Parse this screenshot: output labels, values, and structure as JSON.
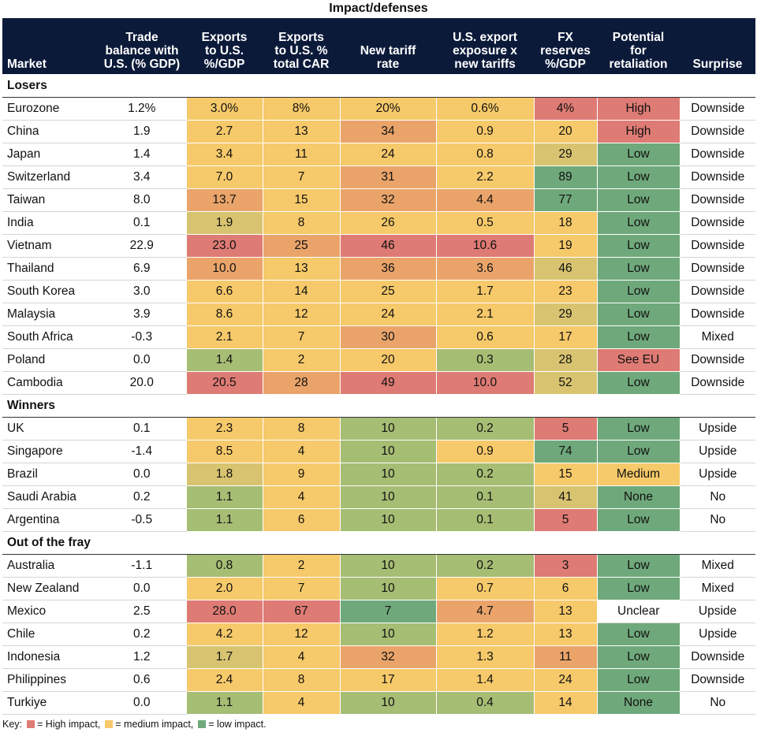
{
  "title": "Impact/defenses",
  "colors": {
    "header_bg": "#0c1a3a",
    "red": "#de7b74",
    "orange": "#eaa46a",
    "yellow": "#f6c96a",
    "olive": "#d8c470",
    "lightgreen": "#a6bd74",
    "green": "#6fa97b",
    "neutral": "#ffffff"
  },
  "chart_data": {
    "type": "table",
    "title": "Impact/defenses",
    "columns": [
      "Market",
      "Trade balance with U.S. (% GDP)",
      "Exports to U.S. %/GDP",
      "Exports to U.S. % total CAR",
      "New tariff rate",
      "U.S. export exposure x new tariffs",
      "FX reserves %/GDP",
      "Potential for retaliation",
      "Surprise"
    ],
    "groups": [
      {
        "name": "Losers",
        "rows": [
          {
            "cells": [
              "Eurozone",
              "1.2%",
              "3.0%",
              "8%",
              "20%",
              "0.6%",
              "4%",
              "High",
              "Downside"
            ],
            "shades": [
              "neutral",
              "neutral",
              "yellow",
              "yellow",
              "yellow",
              "yellow",
              "red",
              "red",
              "neutral"
            ]
          },
          {
            "cells": [
              "China",
              "1.9",
              "2.7",
              "13",
              "34",
              "0.9",
              "20",
              "High",
              "Downside"
            ],
            "shades": [
              "neutral",
              "neutral",
              "yellow",
              "yellow",
              "orange",
              "yellow",
              "yellow",
              "red",
              "neutral"
            ]
          },
          {
            "cells": [
              "Japan",
              "1.4",
              "3.4",
              "11",
              "24",
              "0.8",
              "29",
              "Low",
              "Downside"
            ],
            "shades": [
              "neutral",
              "neutral",
              "yellow",
              "yellow",
              "yellow",
              "yellow",
              "olive",
              "green",
              "neutral"
            ]
          },
          {
            "cells": [
              "Switzerland",
              "3.4",
              "7.0",
              "7",
              "31",
              "2.2",
              "89",
              "Low",
              "Downside"
            ],
            "shades": [
              "neutral",
              "neutral",
              "yellow",
              "yellow",
              "orange",
              "yellow",
              "green",
              "green",
              "neutral"
            ]
          },
          {
            "cells": [
              "Taiwan",
              "8.0",
              "13.7",
              "15",
              "32",
              "4.4",
              "77",
              "Low",
              "Downside"
            ],
            "shades": [
              "neutral",
              "neutral",
              "orange",
              "yellow",
              "orange",
              "orange",
              "green",
              "green",
              "neutral"
            ]
          },
          {
            "cells": [
              "India",
              "0.1",
              "1.9",
              "8",
              "26",
              "0.5",
              "18",
              "Low",
              "Downside"
            ],
            "shades": [
              "neutral",
              "neutral",
              "olive",
              "yellow",
              "yellow",
              "yellow",
              "yellow",
              "green",
              "neutral"
            ]
          },
          {
            "cells": [
              "Vietnam",
              "22.9",
              "23.0",
              "25",
              "46",
              "10.6",
              "19",
              "Low",
              "Downside"
            ],
            "shades": [
              "neutral",
              "neutral",
              "red",
              "orange",
              "red",
              "red",
              "yellow",
              "green",
              "neutral"
            ]
          },
          {
            "cells": [
              "Thailand",
              "6.9",
              "10.0",
              "13",
              "36",
              "3.6",
              "46",
              "Low",
              "Downside"
            ],
            "shades": [
              "neutral",
              "neutral",
              "orange",
              "yellow",
              "orange",
              "orange",
              "olive",
              "green",
              "neutral"
            ]
          },
          {
            "cells": [
              "South Korea",
              "3.0",
              "6.6",
              "14",
              "25",
              "1.7",
              "23",
              "Low",
              "Downside"
            ],
            "shades": [
              "neutral",
              "neutral",
              "yellow",
              "yellow",
              "yellow",
              "yellow",
              "yellow",
              "green",
              "neutral"
            ]
          },
          {
            "cells": [
              "Malaysia",
              "3.9",
              "8.6",
              "12",
              "24",
              "2.1",
              "29",
              "Low",
              "Downside"
            ],
            "shades": [
              "neutral",
              "neutral",
              "yellow",
              "yellow",
              "yellow",
              "yellow",
              "olive",
              "green",
              "neutral"
            ]
          },
          {
            "cells": [
              "South Africa",
              "-0.3",
              "2.1",
              "7",
              "30",
              "0.6",
              "17",
              "Low",
              "Mixed"
            ],
            "shades": [
              "neutral",
              "neutral",
              "yellow",
              "yellow",
              "orange",
              "yellow",
              "yellow",
              "green",
              "neutral"
            ]
          },
          {
            "cells": [
              "Poland",
              "0.0",
              "1.4",
              "2",
              "20",
              "0.3",
              "28",
              "See EU",
              "Downside"
            ],
            "shades": [
              "neutral",
              "neutral",
              "lightgreen",
              "yellow",
              "yellow",
              "lightgreen",
              "olive",
              "red",
              "neutral"
            ]
          },
          {
            "cells": [
              "Cambodia",
              "20.0",
              "20.5",
              "28",
              "49",
              "10.0",
              "52",
              "Low",
              "Downside"
            ],
            "shades": [
              "neutral",
              "neutral",
              "red",
              "orange",
              "red",
              "red",
              "olive",
              "green",
              "neutral"
            ]
          }
        ]
      },
      {
        "name": "Winners",
        "rows": [
          {
            "cells": [
              "UK",
              "0.1",
              "2.3",
              "8",
              "10",
              "0.2",
              "5",
              "Low",
              "Upside"
            ],
            "shades": [
              "neutral",
              "neutral",
              "yellow",
              "yellow",
              "lightgreen",
              "lightgreen",
              "red",
              "green",
              "neutral"
            ]
          },
          {
            "cells": [
              "Singapore",
              "-1.4",
              "8.5",
              "4",
              "10",
              "0.9",
              "74",
              "Low",
              "Upside"
            ],
            "shades": [
              "neutral",
              "neutral",
              "yellow",
              "yellow",
              "lightgreen",
              "yellow",
              "green",
              "green",
              "neutral"
            ]
          },
          {
            "cells": [
              "Brazil",
              "0.0",
              "1.8",
              "9",
              "10",
              "0.2",
              "15",
              "Medium",
              "Upside"
            ],
            "shades": [
              "neutral",
              "neutral",
              "olive",
              "yellow",
              "lightgreen",
              "lightgreen",
              "yellow",
              "yellow",
              "neutral"
            ]
          },
          {
            "cells": [
              "Saudi Arabia",
              "0.2",
              "1.1",
              "4",
              "10",
              "0.1",
              "41",
              "None",
              "No"
            ],
            "shades": [
              "neutral",
              "neutral",
              "lightgreen",
              "yellow",
              "lightgreen",
              "lightgreen",
              "olive",
              "green",
              "neutral"
            ]
          },
          {
            "cells": [
              "Argentina",
              "-0.5",
              "1.1",
              "6",
              "10",
              "0.1",
              "5",
              "Low",
              "No"
            ],
            "shades": [
              "neutral",
              "neutral",
              "lightgreen",
              "yellow",
              "lightgreen",
              "lightgreen",
              "red",
              "green",
              "neutral"
            ]
          }
        ]
      },
      {
        "name": "Out of the fray",
        "rows": [
          {
            "cells": [
              "Australia",
              "-1.1",
              "0.8",
              "2",
              "10",
              "0.2",
              "3",
              "Low",
              "Mixed"
            ],
            "shades": [
              "neutral",
              "neutral",
              "lightgreen",
              "yellow",
              "lightgreen",
              "lightgreen",
              "red",
              "green",
              "neutral"
            ]
          },
          {
            "cells": [
              "New Zealand",
              "0.0",
              "2.0",
              "7",
              "10",
              "0.7",
              "6",
              "Low",
              "Mixed"
            ],
            "shades": [
              "neutral",
              "neutral",
              "yellow",
              "yellow",
              "lightgreen",
              "yellow",
              "yellow",
              "green",
              "neutral"
            ]
          },
          {
            "cells": [
              "Mexico",
              "2.5",
              "28.0",
              "67",
              "7",
              "4.7",
              "13",
              "Unclear",
              "Upside"
            ],
            "shades": [
              "neutral",
              "neutral",
              "red",
              "red",
              "green",
              "orange",
              "yellow",
              "neutral",
              "neutral"
            ]
          },
          {
            "cells": [
              "Chile",
              "0.2",
              "4.2",
              "12",
              "10",
              "1.2",
              "13",
              "Low",
              "Upside"
            ],
            "shades": [
              "neutral",
              "neutral",
              "yellow",
              "yellow",
              "lightgreen",
              "yellow",
              "yellow",
              "green",
              "neutral"
            ]
          },
          {
            "cells": [
              "Indonesia",
              "1.2",
              "1.7",
              "4",
              "32",
              "1.3",
              "11",
              "Low",
              "Downside"
            ],
            "shades": [
              "neutral",
              "neutral",
              "olive",
              "yellow",
              "orange",
              "yellow",
              "orange",
              "green",
              "neutral"
            ]
          },
          {
            "cells": [
              "Philippines",
              "0.6",
              "2.4",
              "8",
              "17",
              "1.4",
              "24",
              "Low",
              "Downside"
            ],
            "shades": [
              "neutral",
              "neutral",
              "yellow",
              "yellow",
              "yellow",
              "yellow",
              "yellow",
              "green",
              "neutral"
            ]
          },
          {
            "cells": [
              "Turkiye",
              "0.0",
              "1.1",
              "4",
              "10",
              "0.4",
              "14",
              "None",
              "No"
            ],
            "shades": [
              "neutral",
              "neutral",
              "lightgreen",
              "yellow",
              "lightgreen",
              "lightgreen",
              "yellow",
              "green",
              "neutral"
            ]
          }
        ]
      }
    ],
    "key": [
      {
        "color": "red",
        "label": "= High impact,"
      },
      {
        "color": "yellow",
        "label": "= medium impact,"
      },
      {
        "color": "green",
        "label": "= low impact."
      }
    ],
    "key_prefix": "Key:"
  },
  "header": {
    "market": "Market",
    "trade_balance": [
      "Trade",
      "balance with",
      "U.S. (% GDP)"
    ],
    "exports_gdp": [
      "Exports",
      "to U.S.",
      "%/GDP"
    ],
    "exports_car": [
      "Exports",
      "to U.S. %",
      "total CAR"
    ],
    "tariff": [
      "New tariff",
      "rate"
    ],
    "exposure": [
      "U.S. export",
      "exposure x",
      "new tariffs"
    ],
    "fx": [
      "FX",
      "reserves",
      "%/GDP"
    ],
    "retaliation": [
      "Potential",
      "for",
      "retaliation"
    ],
    "surprise": "Surprise"
  }
}
